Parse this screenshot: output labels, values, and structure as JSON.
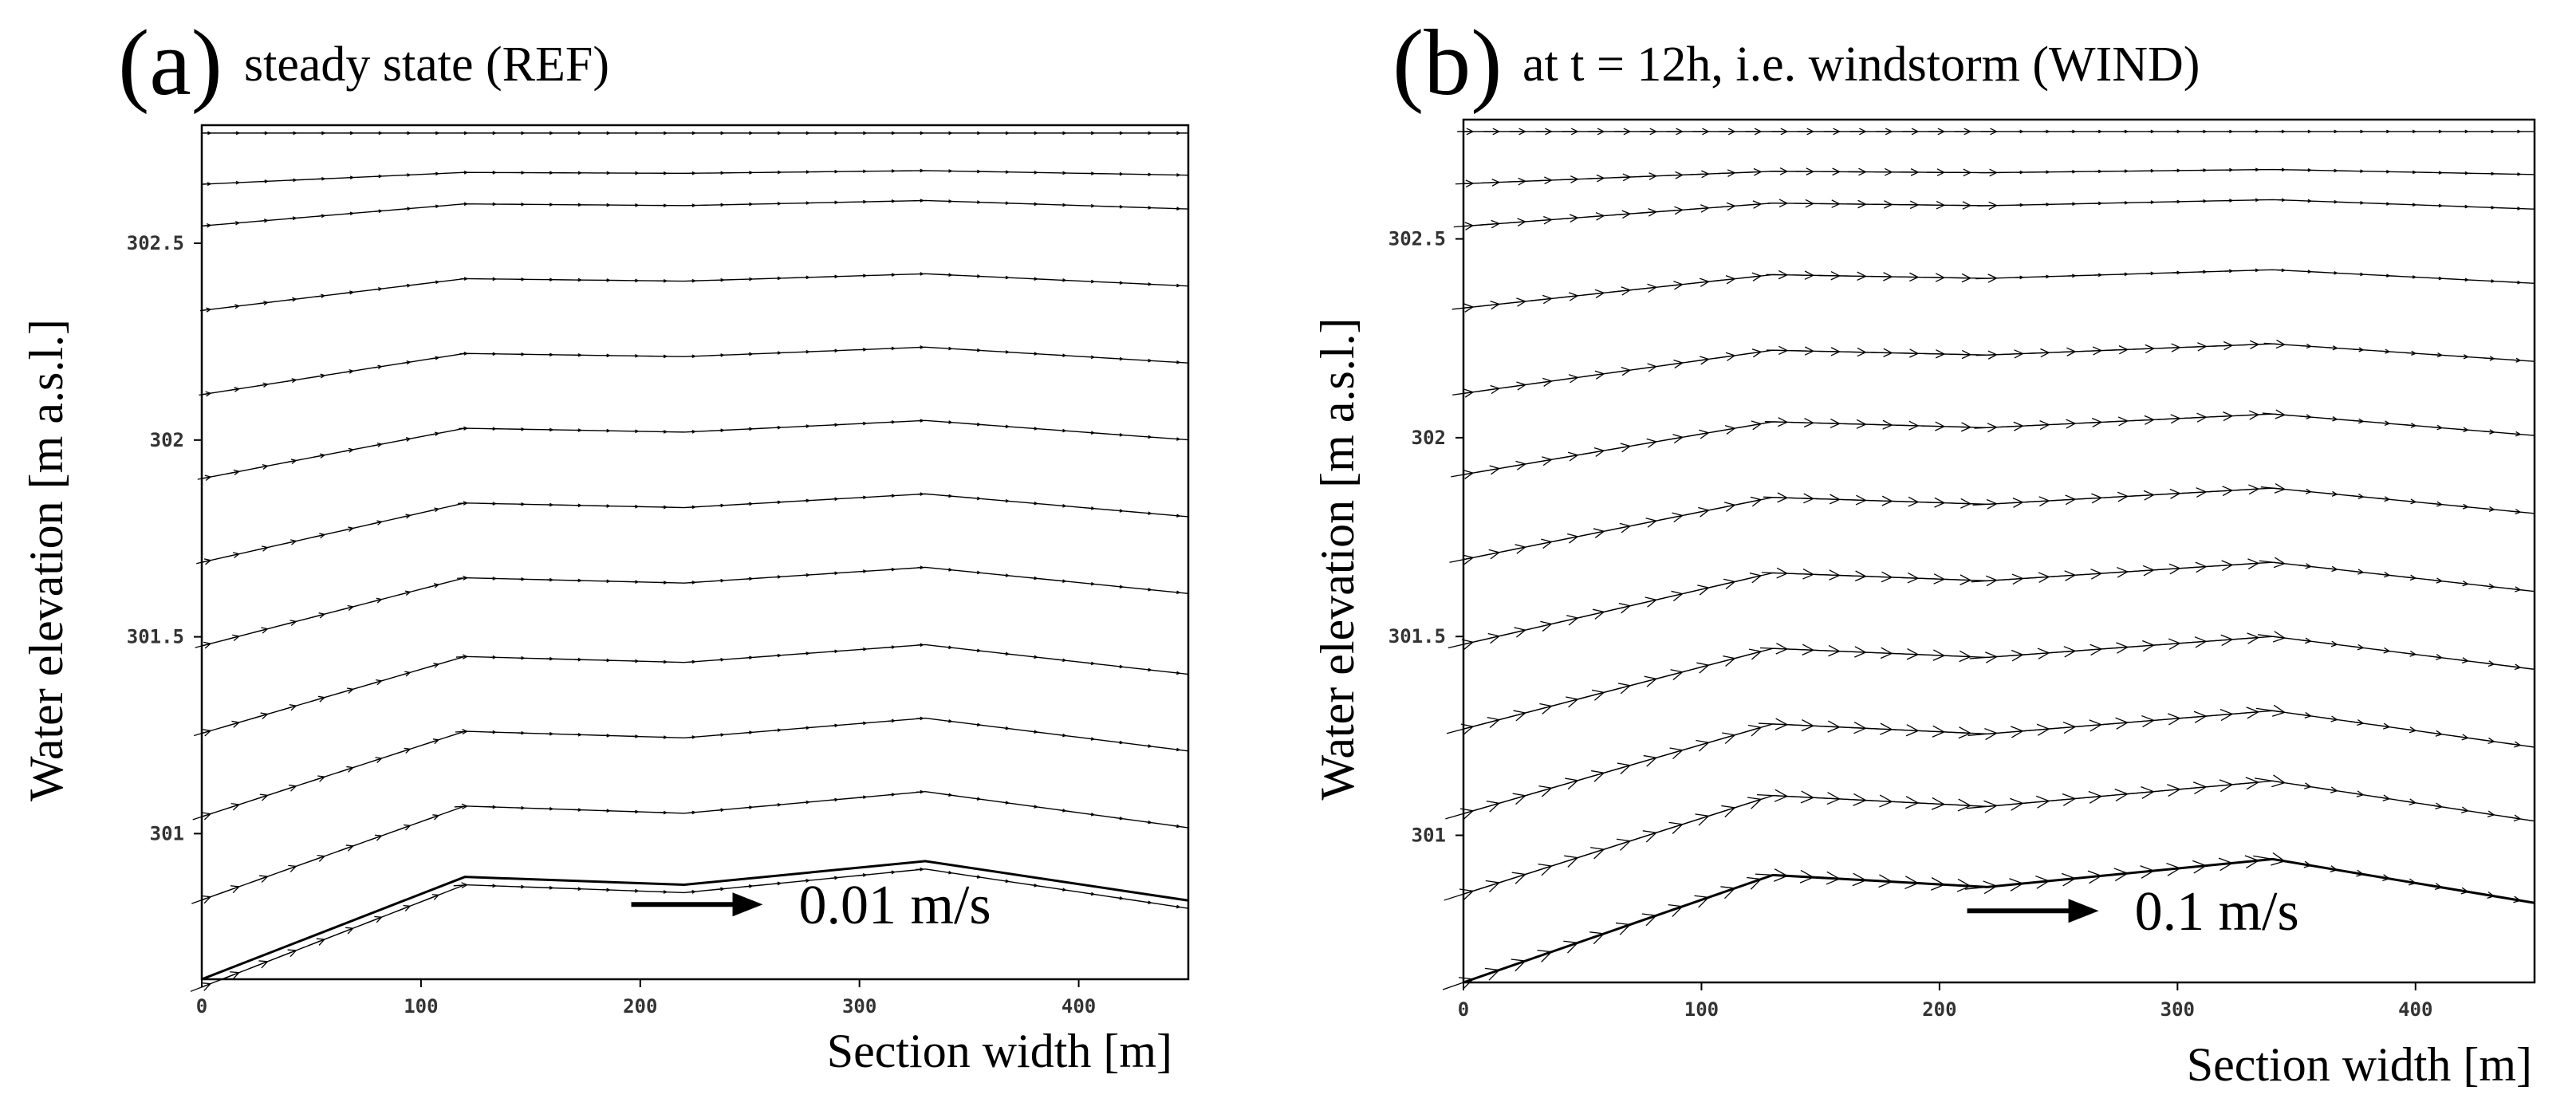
{
  "chart_data": [
    {
      "type": "quiver",
      "panel_letter": "(a)",
      "title": "steady state (REF)",
      "xlabel": "Section width [m]",
      "ylabel": "Water elevation [m a.s.l.]",
      "xlim": [
        0,
        450
      ],
      "ylim": [
        300.63,
        302.8
      ],
      "xticks": [
        0,
        100,
        200,
        300,
        400
      ],
      "yticks": [
        301,
        301.5,
        302,
        302.5
      ],
      "ytick_labels": [
        "301",
        "301.5",
        "302",
        "302.5"
      ],
      "scale_arrow_label": "0.01 m/s",
      "scale_arrow_position": {
        "x": 205,
        "y": 300.82
      },
      "bed_profile": {
        "x": [
          0,
          120,
          220,
          330,
          450
        ],
        "y": [
          300.63,
          300.89,
          300.87,
          300.93,
          300.83
        ]
      },
      "layers": [
        302.78,
        302.68,
        302.6,
        302.41,
        302.22,
        302.03,
        301.84,
        301.65,
        301.45,
        301.26,
        301.07,
        300.87
      ],
      "flow_direction": "left-to-right"
    },
    {
      "type": "quiver",
      "panel_letter": "(b)",
      "title": "at t = 12h, i.e. windstorm (WIND)",
      "xlabel": "Section width [m]",
      "ylabel": "Water elevation [m a.s.l.]",
      "xlim": [
        0,
        450
      ],
      "ylim": [
        300.63,
        302.8
      ],
      "xticks": [
        0,
        100,
        200,
        300,
        400
      ],
      "yticks": [
        301,
        301.5,
        302,
        302.5
      ],
      "ytick_labels": [
        "301",
        "301.5",
        "302",
        "302.5"
      ],
      "scale_arrow_label": "0.1 m/s",
      "scale_arrow_position": {
        "x": 220,
        "y": 300.81
      },
      "bed_profile": {
        "x": [
          0,
          130,
          220,
          340,
          450
        ],
        "y": [
          300.63,
          300.9,
          300.87,
          300.94,
          300.83
        ]
      },
      "layers": [
        302.77,
        302.67,
        302.59,
        302.41,
        302.22,
        302.04,
        301.85,
        301.66,
        301.47,
        301.28,
        301.1,
        300.9
      ],
      "flow_direction": "left-to-right"
    }
  ]
}
